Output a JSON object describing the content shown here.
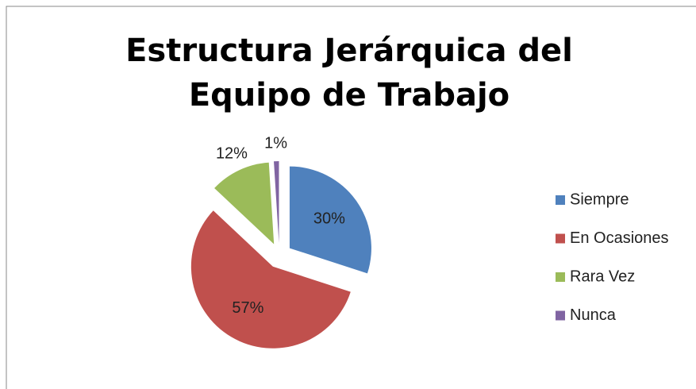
{
  "chart_data": {
    "type": "pie",
    "title": "Estructura Jerárquica del Equipo de Trabajo",
    "categories": [
      "Siempre",
      "En Ocasiones",
      "Rara Vez",
      "Nunca"
    ],
    "values": [
      30,
      57,
      12,
      1
    ],
    "value_labels": [
      "30%",
      "57%",
      "12%",
      "1%"
    ],
    "colors": [
      "#4f81bd",
      "#c0504d",
      "#9bbb59",
      "#8064a2"
    ],
    "exploded": true,
    "legend": "right"
  }
}
